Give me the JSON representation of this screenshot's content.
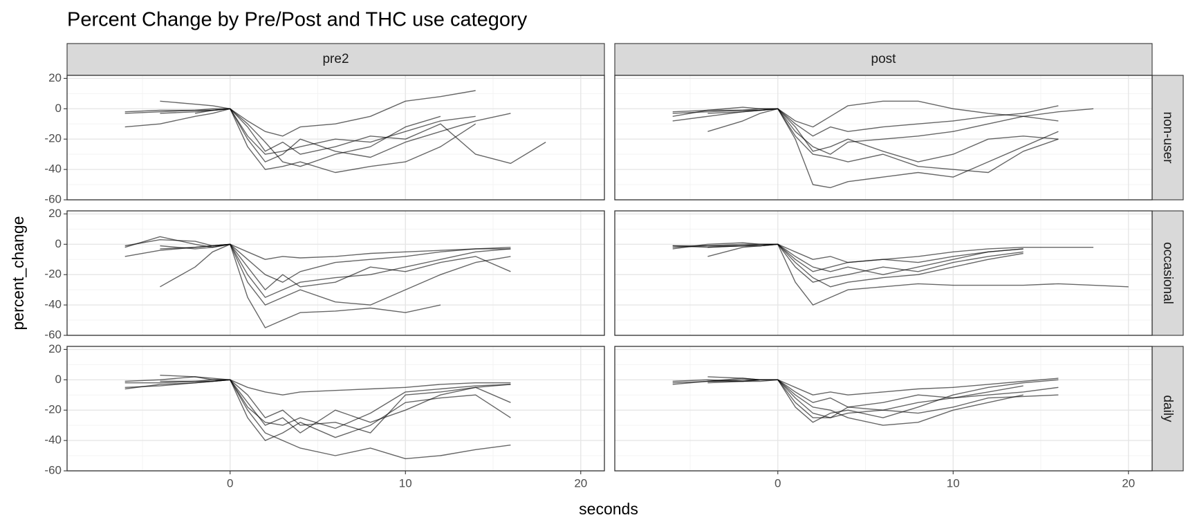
{
  "chart_data": {
    "type": "line",
    "title": "Percent Change by Pre/Post and THC use category",
    "xlabel": "seconds",
    "ylabel": "percent_change",
    "facet_cols": [
      "pre2",
      "post"
    ],
    "facet_rows": [
      "non-user",
      "occasional",
      "daily"
    ],
    "color": "#000000",
    "alpha": 0.6,
    "grid": true,
    "xlim": [
      -9.3,
      21.35
    ],
    "ylim": [
      -60,
      22
    ],
    "xticks": [
      0,
      10,
      20
    ],
    "yticks": [
      -60,
      -40,
      -20,
      0,
      20
    ],
    "x": [
      -6,
      -4,
      -2,
      -1,
      0,
      1,
      2,
      3,
      4,
      6,
      8,
      10,
      12,
      14,
      16,
      18,
      20
    ],
    "panels": [
      [
        {
          "series": [
            {
              "values": [
                -2,
                -1,
                -1,
                -1,
                0,
                -18,
                -30,
                -28,
                -25,
                -20,
                -22,
                -15,
                -8,
                -5,
                null,
                null,
                null
              ]
            },
            {
              "values": [
                null,
                5,
                3,
                2,
                0,
                -10,
                -22,
                -35,
                -38,
                -30,
                -25,
                -12,
                -5,
                null,
                null,
                null,
                null
              ]
            },
            {
              "values": [
                -12,
                -10,
                -5,
                -3,
                0,
                -25,
                -40,
                -38,
                -35,
                -42,
                -38,
                -35,
                -25,
                -10,
                null,
                null,
                null
              ]
            },
            {
              "values": [
                null,
                -3,
                -2,
                -1,
                0,
                -8,
                -15,
                -18,
                -12,
                -10,
                -5,
                5,
                8,
                12,
                null,
                null,
                null
              ]
            },
            {
              "values": [
                null,
                null,
                -3,
                -1,
                0,
                -12,
                -28,
                -22,
                -30,
                -25,
                -18,
                -20,
                -10,
                -30,
                -36,
                -22,
                null
              ]
            },
            {
              "values": [
                -3,
                -2,
                -1,
                0,
                0,
                -20,
                -35,
                -30,
                -20,
                -28,
                -32,
                -22,
                -15,
                -8,
                -3,
                null,
                null
              ]
            }
          ]
        },
        {
          "series": [
            {
              "values": [
                -3,
                -2,
                -1,
                0,
                0,
                -20,
                -50,
                -52,
                -48,
                -45,
                -42,
                -45,
                -35,
                -25,
                -15,
                null,
                null
              ]
            },
            {
              "values": [
                -5,
                -1,
                1,
                0,
                0,
                -8,
                -12,
                -5,
                2,
                5,
                5,
                0,
                -3,
                -5,
                -8,
                null,
                null
              ]
            },
            {
              "values": [
                null,
                -15,
                -8,
                -3,
                0,
                -15,
                -25,
                -30,
                -22,
                -20,
                -18,
                -15,
                -10,
                -5,
                -2,
                0,
                null
              ]
            },
            {
              "values": [
                -2,
                -1,
                -1,
                -1,
                0,
                -12,
                -28,
                -25,
                -20,
                -28,
                -35,
                -30,
                -20,
                -18,
                -20,
                null,
                null
              ]
            },
            {
              "values": [
                null,
                -3,
                -2,
                -1,
                0,
                -10,
                -18,
                -12,
                -15,
                -12,
                -10,
                -8,
                -5,
                -3,
                2,
                null,
                null
              ]
            },
            {
              "values": [
                -8,
                -5,
                -2,
                -1,
                0,
                -18,
                -30,
                -32,
                -35,
                -30,
                -38,
                -40,
                -42,
                -28,
                -20,
                null,
                null
              ]
            }
          ]
        }
      ],
      [
        {
          "series": [
            {
              "values": [
                null,
                -3,
                -2,
                -1,
                0,
                -35,
                -55,
                -50,
                -45,
                -44,
                -42,
                -45,
                -40,
                null,
                null,
                null,
                null
              ]
            },
            {
              "values": [
                null,
                -28,
                -15,
                -5,
                0,
                -20,
                -35,
                -30,
                -25,
                -22,
                -20,
                -15,
                -10,
                -5,
                -3,
                null,
                null
              ]
            },
            {
              "values": [
                -1,
                3,
                2,
                -1,
                0,
                -10,
                -20,
                -25,
                -18,
                -12,
                -10,
                -8,
                -5,
                -3,
                -2,
                null,
                null
              ]
            },
            {
              "values": [
                -2,
                5,
                0,
                -2,
                0,
                -25,
                -40,
                -35,
                -30,
                -38,
                -40,
                -30,
                -20,
                -12,
                -8,
                null,
                null
              ]
            },
            {
              "values": [
                null,
                -1,
                -3,
                -2,
                0,
                -15,
                -30,
                -20,
                -28,
                -25,
                -15,
                -18,
                -12,
                -8,
                -18,
                null,
                null
              ]
            },
            {
              "values": [
                -8,
                -4,
                -2,
                -1,
                0,
                -5,
                -10,
                -8,
                -9,
                -8,
                -6,
                -5,
                -4,
                -3,
                -3,
                null,
                null
              ]
            }
          ]
        },
        {
          "series": [
            {
              "values": [
                -2,
                -1,
                -1,
                0,
                0,
                -25,
                -40,
                -35,
                -30,
                -28,
                -26,
                -27,
                -27,
                -27,
                -26,
                -27,
                -28
              ]
            },
            {
              "values": [
                null,
                -8,
                -2,
                -1,
                0,
                -10,
                -18,
                -15,
                -12,
                -10,
                -12,
                -8,
                -5,
                -3,
                null,
                null,
                null
              ]
            },
            {
              "values": [
                -1,
                -1,
                0,
                0,
                0,
                -5,
                -10,
                -8,
                -12,
                -10,
                -8,
                -5,
                -3,
                -2,
                -2,
                -2,
                null
              ]
            },
            {
              "values": [
                null,
                -2,
                -1,
                -1,
                0,
                -15,
                -25,
                -22,
                -20,
                -15,
                -18,
                -12,
                -8,
                -5,
                null,
                null,
                null
              ]
            },
            {
              "values": [
                -3,
                0,
                1,
                0,
                0,
                -8,
                -15,
                -18,
                -15,
                -20,
                -15,
                -10,
                -5,
                -3,
                null,
                null,
                null
              ]
            },
            {
              "values": [
                -1,
                -2,
                -1,
                -1,
                0,
                -12,
                -22,
                -28,
                -25,
                -22,
                -20,
                -15,
                -10,
                -6,
                null,
                null,
                null
              ]
            }
          ]
        }
      ],
      [
        {
          "series": [
            {
              "values": [
                null,
                -1,
                -1,
                0,
                0,
                -20,
                -35,
                -40,
                -45,
                -50,
                -45,
                -52,
                -50,
                -46,
                -43,
                null,
                null
              ]
            },
            {
              "values": [
                -2,
                -2,
                -1,
                -1,
                0,
                -10,
                -25,
                -20,
                -30,
                -28,
                -35,
                -10,
                -8,
                -5,
                -3,
                null,
                null
              ]
            },
            {
              "values": [
                null,
                3,
                2,
                0,
                0,
                -5,
                -8,
                -10,
                -8,
                -7,
                -6,
                -5,
                -3,
                -2,
                -2,
                null,
                null
              ]
            },
            {
              "values": [
                -5,
                -4,
                -2,
                -1,
                0,
                -25,
                -40,
                -35,
                -28,
                -38,
                -30,
                -15,
                -12,
                -10,
                -25,
                null,
                null
              ]
            },
            {
              "values": [
                -1,
                0,
                2,
                1,
                0,
                -15,
                -30,
                -25,
                -35,
                -20,
                -28,
                -20,
                -10,
                -5,
                -15,
                null,
                null
              ]
            },
            {
              "values": [
                -6,
                -3,
                -2,
                -1,
                0,
                -18,
                -28,
                -30,
                -25,
                -32,
                -22,
                -8,
                -6,
                -4,
                -3,
                null,
                null
              ]
            }
          ]
        },
        {
          "series": [
            {
              "values": [
                -2,
                -1,
                -1,
                0,
                0,
                -15,
                -25,
                -25,
                -22,
                -20,
                -15,
                -12,
                -10,
                -8,
                -5,
                null,
                null
              ]
            },
            {
              "values": [
                null,
                2,
                1,
                0,
                0,
                -10,
                -18,
                -20,
                -25,
                -30,
                -28,
                -20,
                -15,
                -10,
                null,
                null,
                null
              ]
            },
            {
              "values": [
                -1,
                0,
                -1,
                0,
                0,
                -5,
                -10,
                -8,
                -10,
                -8,
                -6,
                -5,
                -3,
                -1,
                1,
                null,
                null
              ]
            },
            {
              "values": [
                null,
                -2,
                -1,
                -1,
                0,
                -12,
                -22,
                -25,
                -18,
                -20,
                -22,
                -18,
                -12,
                -11,
                -10,
                null,
                null
              ]
            },
            {
              "values": [
                -3,
                -1,
                1,
                0,
                0,
                -8,
                -15,
                -12,
                -18,
                -15,
                -10,
                -12,
                -8,
                -4,
                null,
                null,
                null
              ]
            },
            {
              "values": [
                null,
                -1,
                0,
                0,
                0,
                -18,
                -28,
                -22,
                -20,
                -25,
                -18,
                -10,
                -5,
                -2,
                0,
                null,
                null
              ]
            }
          ]
        }
      ]
    ]
  }
}
